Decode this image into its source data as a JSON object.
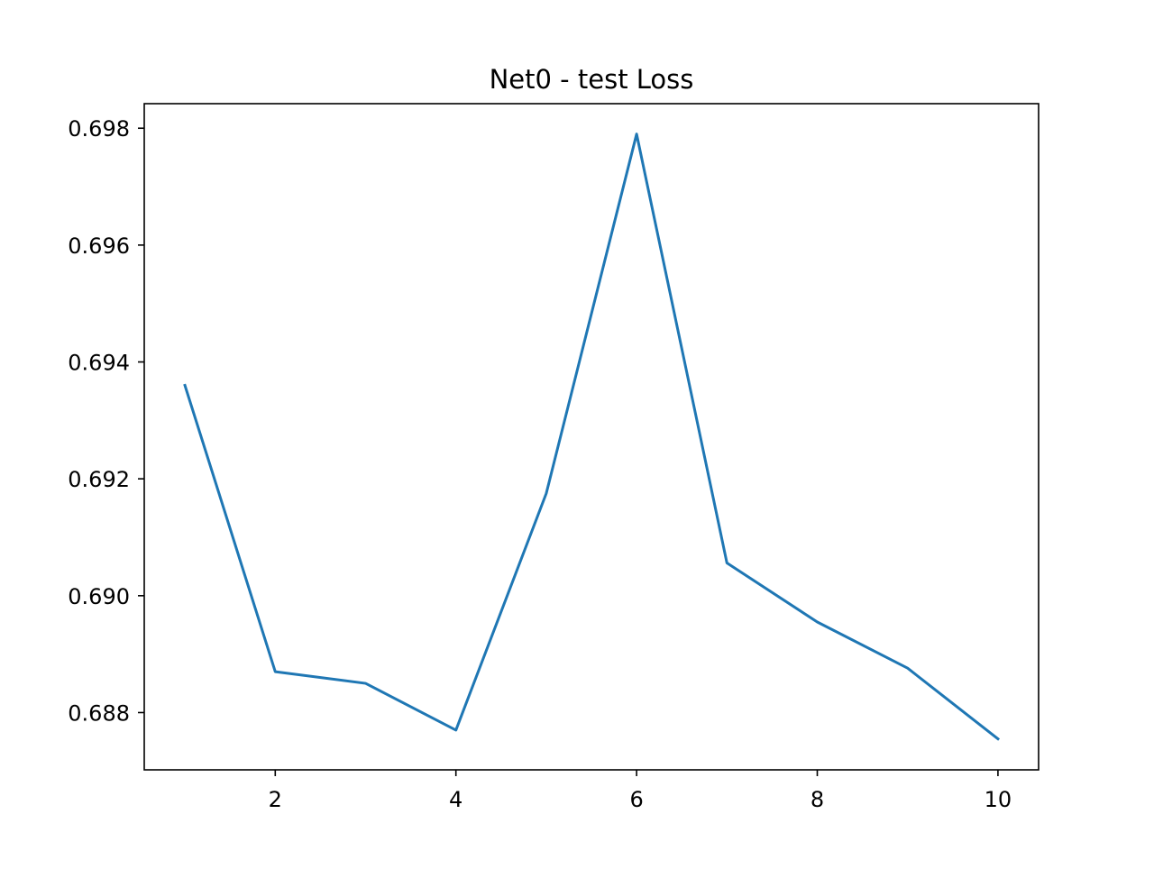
{
  "chart_data": {
    "type": "line",
    "title": "Net0 - test Loss",
    "xlabel": "",
    "ylabel": "",
    "x": [
      1,
      2,
      3,
      4,
      5,
      6,
      7,
      8,
      9,
      10
    ],
    "series": [
      {
        "values": [
          0.6936,
          0.6887,
          0.6885,
          0.6877,
          0.69175,
          0.6979,
          0.69056,
          0.68955,
          0.68876,
          0.68755
        ],
        "color": "#1f77b4"
      }
    ],
    "xlim": [
      0.55,
      10.45
    ],
    "ylim": [
      0.68702,
      0.69842
    ],
    "x_ticks": [
      2,
      4,
      6,
      8,
      10
    ],
    "x_tick_labels": [
      "2",
      "4",
      "6",
      "8",
      "10"
    ],
    "y_ticks": [
      0.688,
      0.69,
      0.692,
      0.694,
      0.696,
      0.698
    ],
    "y_tick_labels": [
      "0.688",
      "0.690",
      "0.692",
      "0.694",
      "0.696",
      "0.698"
    ],
    "grid": false,
    "legend": "none"
  }
}
